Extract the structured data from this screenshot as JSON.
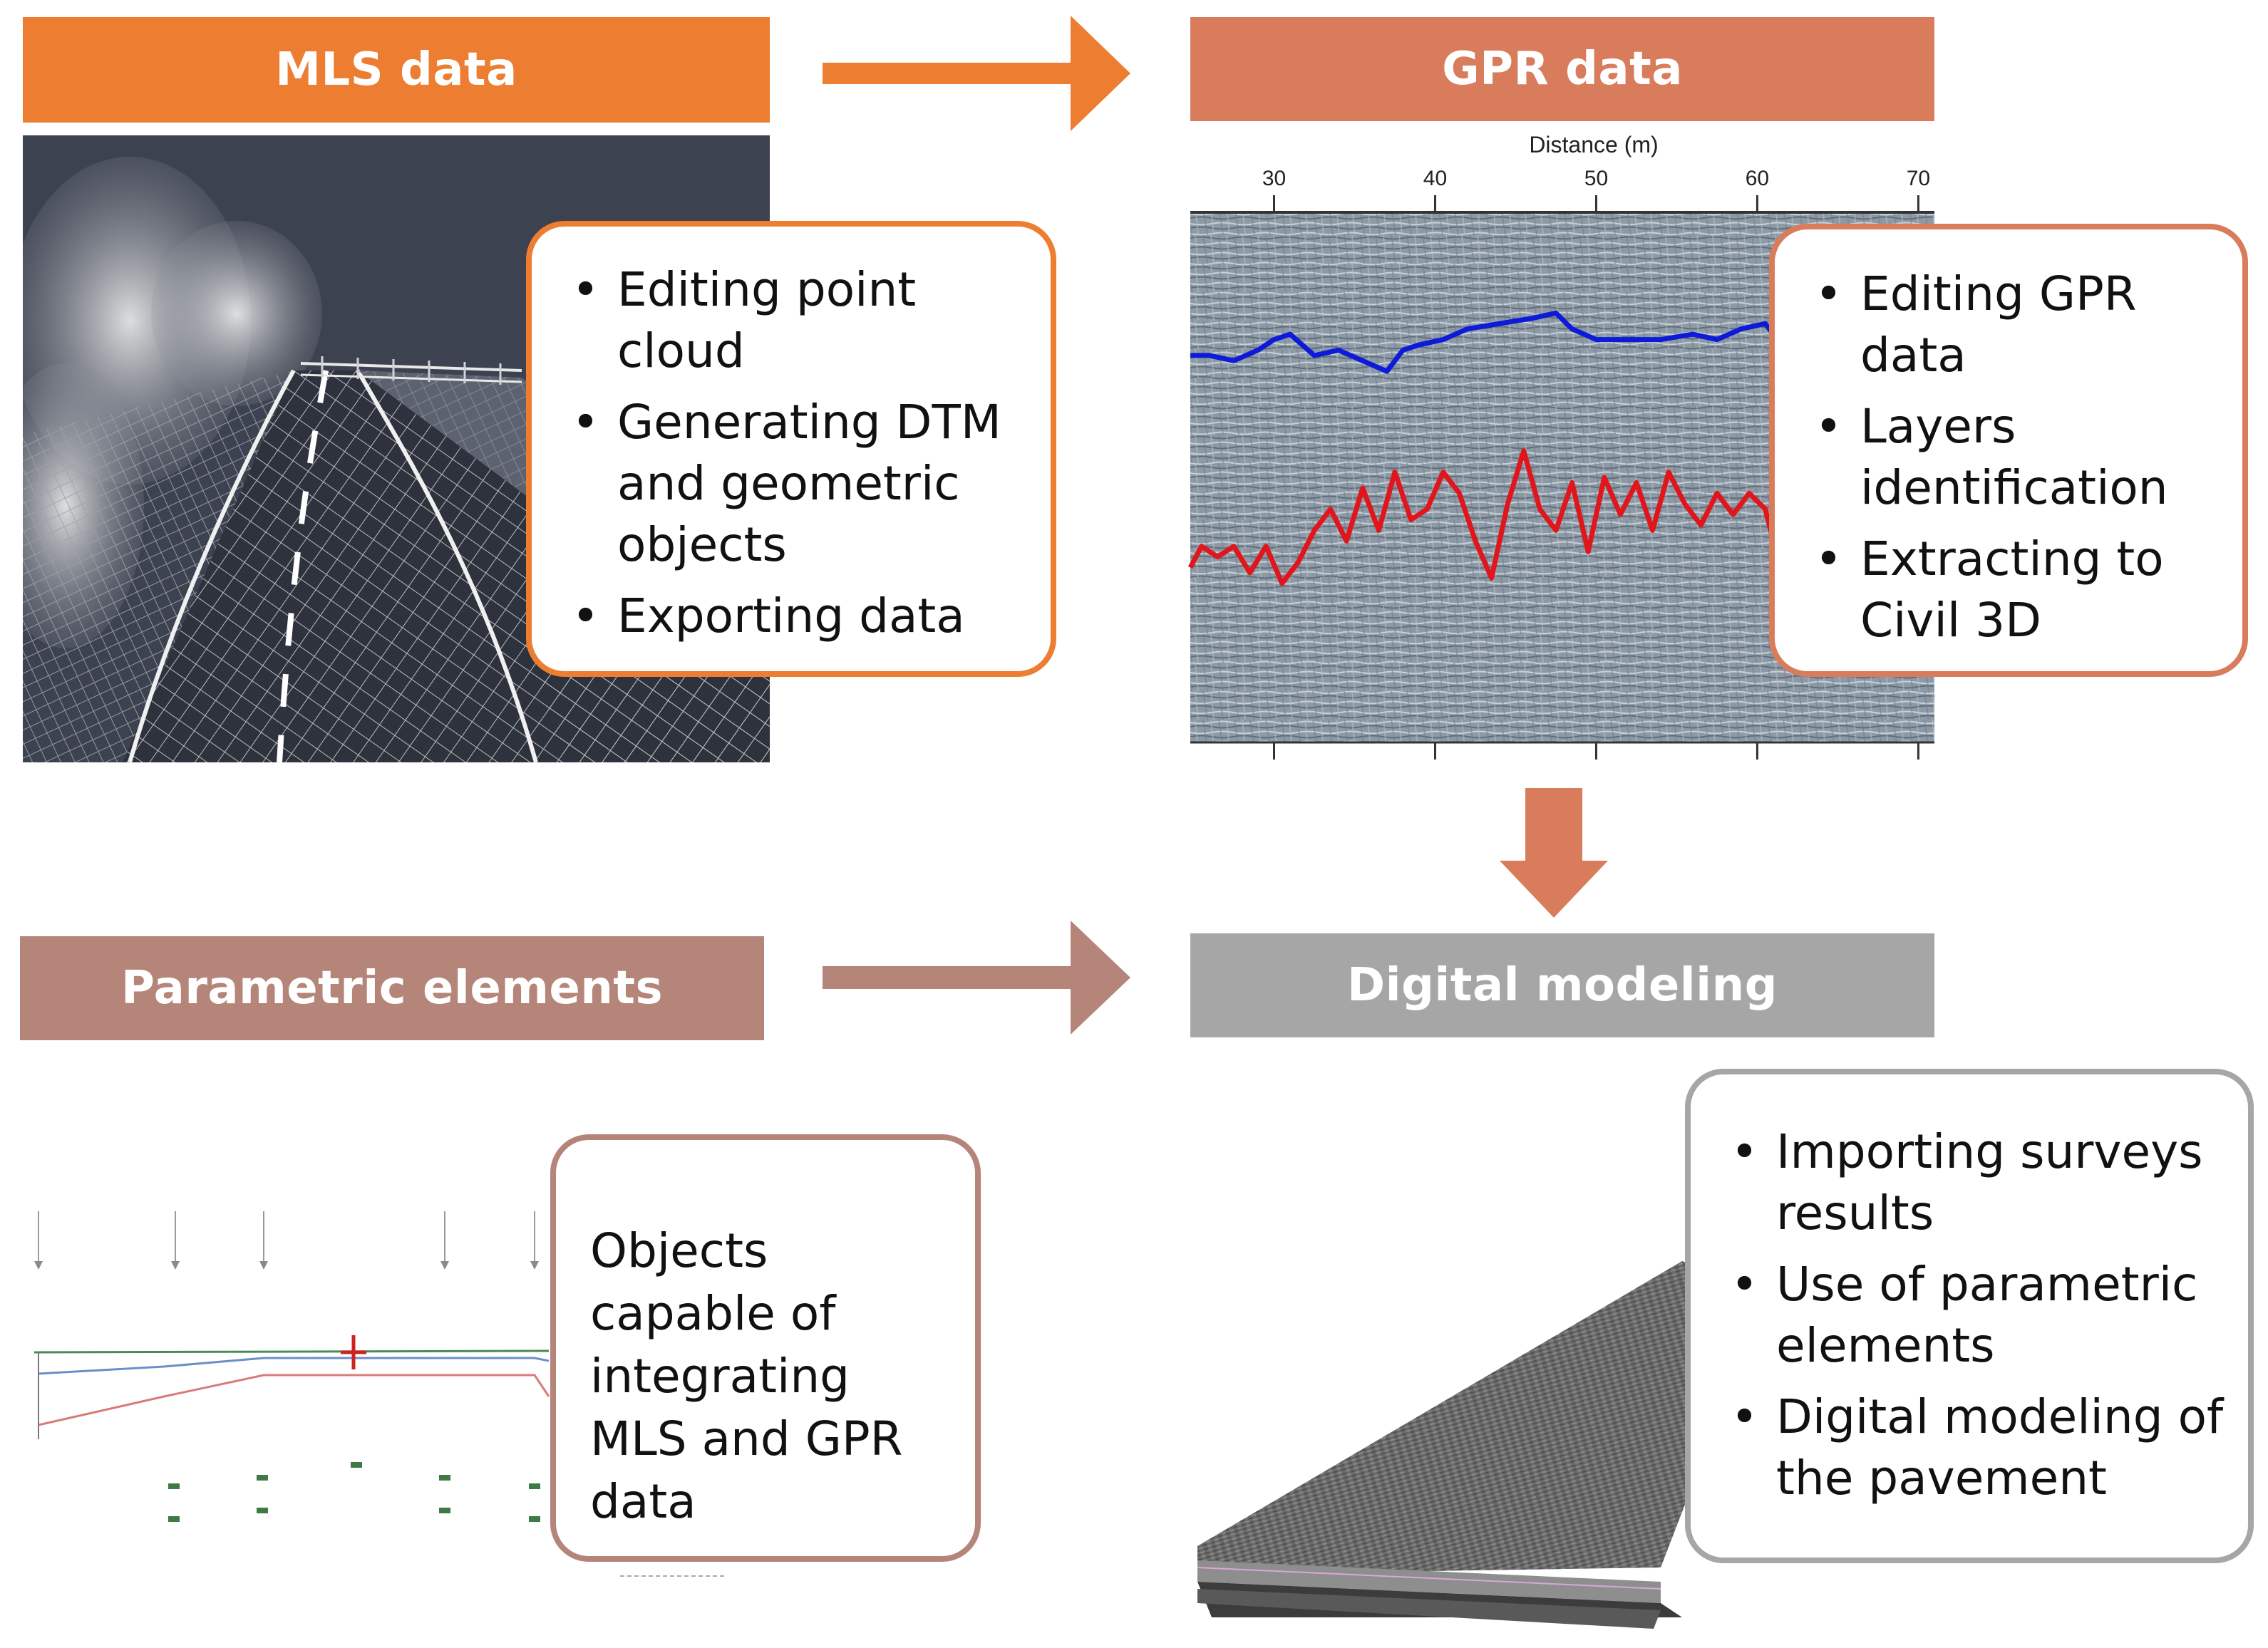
{
  "colors": {
    "mls": "#ED7D31",
    "gpr": "#D97C5C",
    "parametric": "#B5857A",
    "digital": "#A6A6A6",
    "gpr_bg": "#8D9AA6",
    "gpr_upper_line": "#0D1BD9",
    "gpr_lower_line": "#E0161C"
  },
  "headers": {
    "mls": "MLS data",
    "gpr": "GPR data",
    "parametric": "Parametric elements",
    "digital": "Digital modeling"
  },
  "mls_callout": {
    "items": [
      "Editing point cloud",
      "Generating DTM and geometric objects",
      "Exporting data"
    ]
  },
  "gpr_callout": {
    "items": [
      "Editing GPR data",
      "Layers identification",
      "Extracting to Civil 3D"
    ]
  },
  "parametric_callout": {
    "text": "Objects capable of integrating MLS and GPR data"
  },
  "digital_callout": {
    "items": [
      "Importing surveys results",
      "Use of parametric elements",
      "Digital modeling of the pavement"
    ]
  },
  "chart_data": {
    "type": "line",
    "xlabel": "Distance (m)",
    "xticks": [
      30,
      40,
      50,
      60,
      70
    ],
    "xlim": [
      24.8,
      71.0
    ],
    "ylim": [
      0,
      1
    ],
    "series": [
      {
        "color": "#0D1BD9",
        "x": [
          24.8,
          26,
          27.5,
          29,
          30,
          31,
          32.5,
          34,
          35.5,
          37,
          38,
          39,
          40.5,
          42,
          44,
          46,
          47.5,
          48.5,
          50,
          52,
          54,
          56,
          57.5,
          59,
          60.5,
          61
        ],
        "y": [
          0.27,
          0.27,
          0.28,
          0.26,
          0.24,
          0.23,
          0.27,
          0.26,
          0.28,
          0.3,
          0.26,
          0.25,
          0.24,
          0.22,
          0.21,
          0.2,
          0.19,
          0.22,
          0.24,
          0.24,
          0.24,
          0.23,
          0.24,
          0.22,
          0.21,
          0.23
        ]
      },
      {
        "color": "#E0161C",
        "x": [
          24.8,
          25.5,
          26.5,
          27.5,
          28.5,
          29.5,
          30.5,
          31.5,
          32.5,
          33.5,
          34.5,
          35.5,
          36.5,
          37.5,
          38.5,
          39.5,
          40.5,
          41.5,
          42.5,
          43.5,
          44.5,
          45.5,
          46.5,
          47.5,
          48.5,
          49.5,
          50.5,
          51.5,
          52.5,
          53.5,
          54.5,
          55.5,
          56.5,
          57.5,
          58.5,
          59.5,
          60.5,
          61
        ],
        "y": [
          0.67,
          0.63,
          0.65,
          0.63,
          0.68,
          0.63,
          0.7,
          0.66,
          0.6,
          0.56,
          0.62,
          0.52,
          0.6,
          0.49,
          0.58,
          0.56,
          0.49,
          0.53,
          0.62,
          0.69,
          0.55,
          0.45,
          0.56,
          0.6,
          0.51,
          0.64,
          0.5,
          0.57,
          0.51,
          0.6,
          0.49,
          0.55,
          0.59,
          0.53,
          0.57,
          0.53,
          0.56,
          0.62
        ]
      }
    ]
  }
}
